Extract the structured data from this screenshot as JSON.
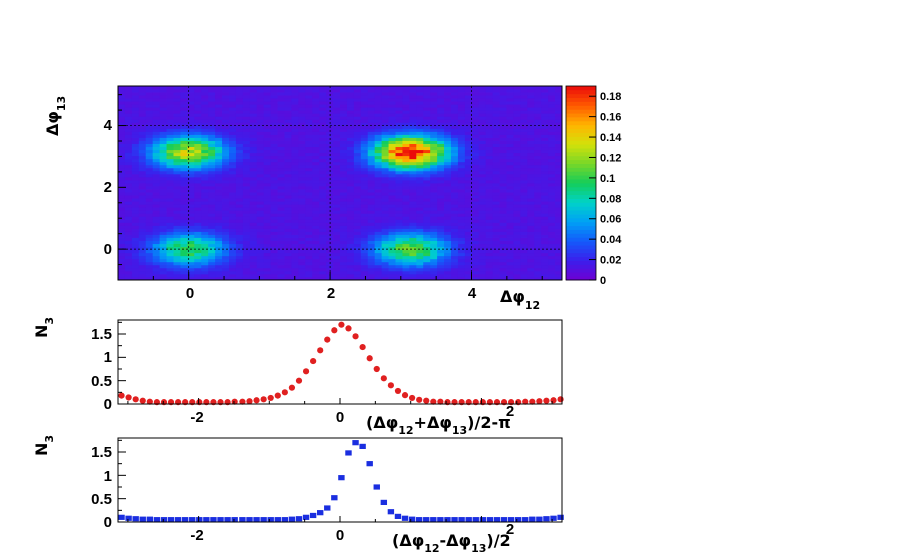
{
  "chart_data": [
    {
      "type": "heatmap",
      "xlabel": "Δφ12",
      "ylabel": "Δφ13",
      "xlim": [
        -1.0,
        5.28
      ],
      "ylim": [
        -1.0,
        5.28
      ],
      "x_ticks": [
        "0",
        "2",
        "4"
      ],
      "y_ticks": [
        "0",
        "2",
        "4"
      ],
      "z_ticks": [
        "0",
        "0.02",
        "0.04",
        "0.06",
        "0.08",
        "0.1",
        "0.12",
        "0.14",
        "0.16",
        "0.18"
      ],
      "zlim": [
        0,
        0.19
      ],
      "background_level": 0.012,
      "peaks": [
        {
          "x": 0.0,
          "y": 3.14,
          "max": 0.12
        },
        {
          "x": 3.14,
          "y": 3.14,
          "max": 0.18
        },
        {
          "x": 0.0,
          "y": 0.0,
          "max": 0.09
        },
        {
          "x": 3.14,
          "y": 0.0,
          "max": 0.1
        }
      ],
      "dashed_lines": {
        "x": [
          0,
          2,
          4
        ],
        "y": [
          0,
          4
        ]
      },
      "colorbar": "right"
    },
    {
      "type": "scatter",
      "ylabel": "N3",
      "xlabel": "(Δφ12+Δφ13)/2-π",
      "color": "#e02020",
      "marker": "circle",
      "xlim": [
        -3.14,
        3.14
      ],
      "ylim": [
        0,
        1.8
      ],
      "x_ticks": [
        "-2",
        "0",
        "2"
      ],
      "y_ticks": [
        "0",
        "0.5",
        "1",
        "1.5"
      ],
      "x": [
        -3.09,
        -2.99,
        -2.89,
        -2.79,
        -2.69,
        -2.59,
        -2.49,
        -2.39,
        -2.29,
        -2.19,
        -2.09,
        -1.99,
        -1.89,
        -1.79,
        -1.69,
        -1.59,
        -1.49,
        -1.38,
        -1.28,
        -1.18,
        -1.08,
        -0.98,
        -0.88,
        -0.78,
        -0.68,
        -0.58,
        -0.48,
        -0.38,
        -0.28,
        -0.18,
        -0.08,
        0.02,
        0.12,
        0.22,
        0.32,
        0.42,
        0.52,
        0.62,
        0.72,
        0.82,
        0.92,
        1.02,
        1.12,
        1.22,
        1.32,
        1.42,
        1.52,
        1.62,
        1.72,
        1.82,
        1.92,
        2.02,
        2.12,
        2.22,
        2.32,
        2.42,
        2.52,
        2.62,
        2.72,
        2.82,
        2.92,
        3.02,
        3.12
      ],
      "y": [
        0.18,
        0.14,
        0.1,
        0.07,
        0.05,
        0.04,
        0.04,
        0.04,
        0.04,
        0.04,
        0.04,
        0.04,
        0.04,
        0.04,
        0.04,
        0.04,
        0.05,
        0.05,
        0.06,
        0.08,
        0.1,
        0.13,
        0.18,
        0.25,
        0.35,
        0.5,
        0.7,
        0.92,
        1.15,
        1.38,
        1.58,
        1.7,
        1.62,
        1.45,
        1.22,
        0.98,
        0.75,
        0.55,
        0.4,
        0.28,
        0.19,
        0.13,
        0.09,
        0.07,
        0.05,
        0.05,
        0.04,
        0.04,
        0.04,
        0.04,
        0.04,
        0.04,
        0.04,
        0.04,
        0.04,
        0.04,
        0.04,
        0.05,
        0.05,
        0.06,
        0.07,
        0.08,
        0.1
      ]
    },
    {
      "type": "scatter",
      "ylabel": "N3",
      "xlabel": "(Δφ12-Δφ13)/2",
      "color": "#1a2ee0",
      "marker": "square",
      "xlim": [
        -3.14,
        3.14
      ],
      "ylim": [
        0,
        1.8
      ],
      "x_ticks": [
        "-2",
        "0",
        "2"
      ],
      "y_ticks": [
        "0",
        "0.5",
        "1",
        "1.5"
      ],
      "x": [
        -3.09,
        -2.99,
        -2.89,
        -2.79,
        -2.69,
        -2.59,
        -2.49,
        -2.39,
        -2.29,
        -2.19,
        -2.09,
        -1.99,
        -1.89,
        -1.79,
        -1.69,
        -1.59,
        -1.49,
        -1.38,
        -1.28,
        -1.18,
        -1.08,
        -0.98,
        -0.88,
        -0.78,
        -0.68,
        -0.58,
        -0.48,
        -0.38,
        -0.28,
        -0.18,
        -0.08,
        0.02,
        0.12,
        0.22,
        0.32,
        0.42,
        0.52,
        0.62,
        0.72,
        0.82,
        0.92,
        1.02,
        1.12,
        1.22,
        1.32,
        1.42,
        1.52,
        1.62,
        1.72,
        1.82,
        1.92,
        2.02,
        2.12,
        2.22,
        2.32,
        2.42,
        2.52,
        2.62,
        2.72,
        2.82,
        2.92,
        3.02,
        3.12
      ],
      "y": [
        0.1,
        0.08,
        0.07,
        0.06,
        0.06,
        0.05,
        0.05,
        0.05,
        0.05,
        0.05,
        0.05,
        0.05,
        0.05,
        0.05,
        0.05,
        0.05,
        0.05,
        0.05,
        0.05,
        0.05,
        0.05,
        0.05,
        0.05,
        0.05,
        0.06,
        0.07,
        0.1,
        0.14,
        0.2,
        0.3,
        0.52,
        0.95,
        1.48,
        1.7,
        1.62,
        1.25,
        0.75,
        0.42,
        0.22,
        0.12,
        0.08,
        0.06,
        0.05,
        0.05,
        0.05,
        0.05,
        0.05,
        0.05,
        0.05,
        0.05,
        0.05,
        0.05,
        0.05,
        0.05,
        0.05,
        0.05,
        0.05,
        0.05,
        0.06,
        0.06,
        0.07,
        0.08,
        0.1
      ]
    }
  ]
}
